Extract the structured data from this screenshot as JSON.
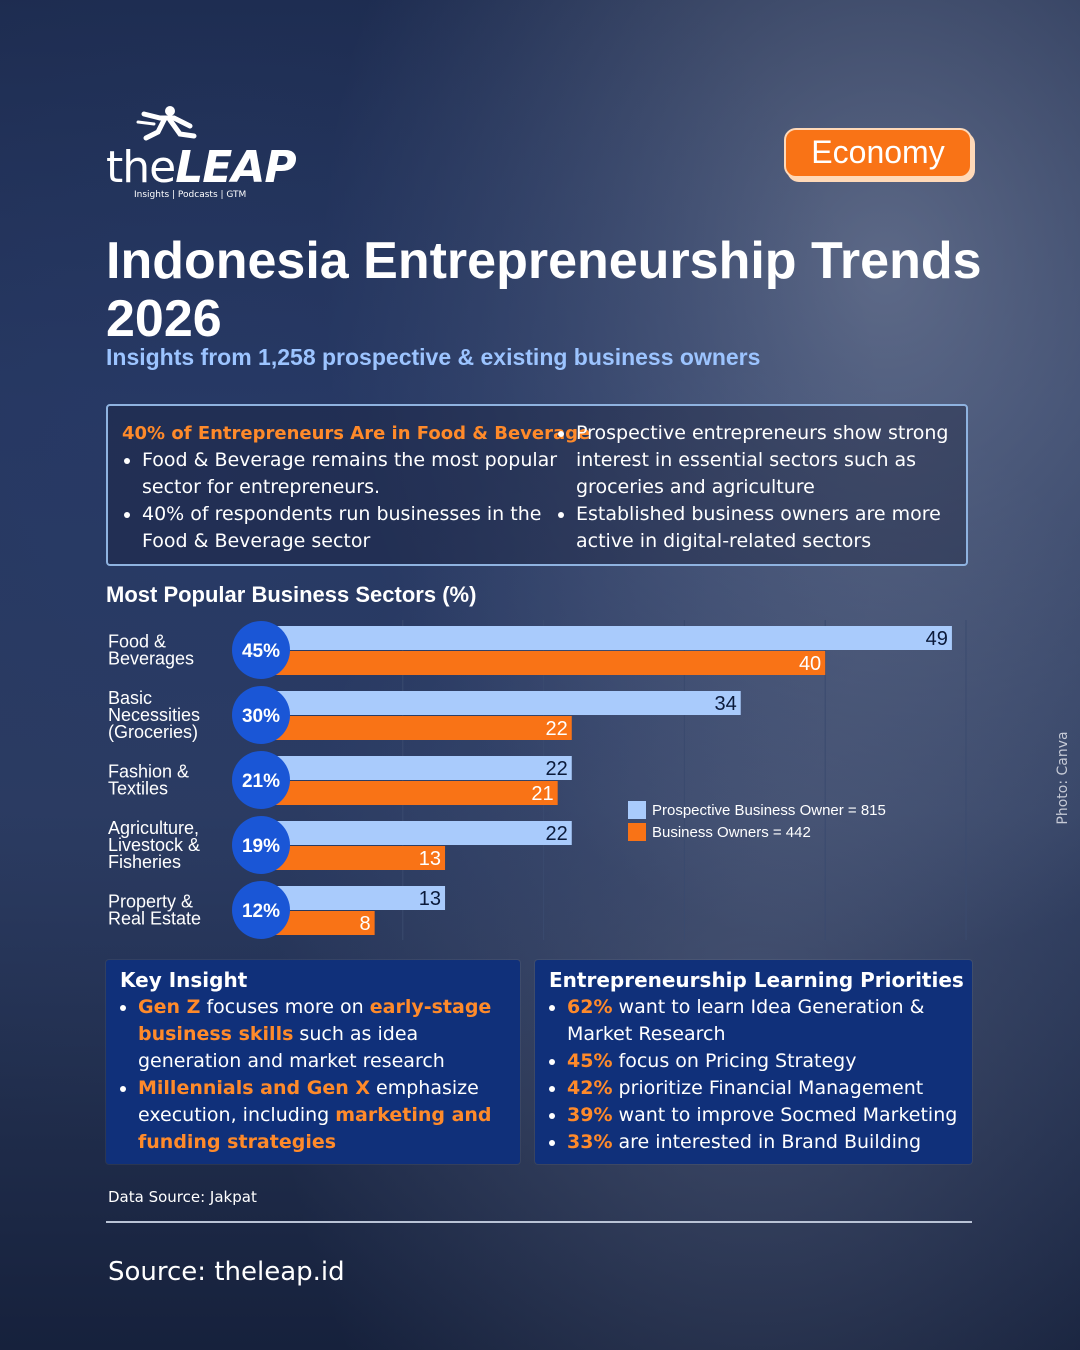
{
  "brand": {
    "wordmark_light": "the",
    "wordmark_bold": "LEAP",
    "tagline": "Insights | Podcasts | GTM"
  },
  "category_badge": "Economy",
  "title": "Indonesia Entrepreneurship Trends 2026",
  "subtitle": "Insights from 1,258 prospective & existing business owners",
  "findings": {
    "heading": "40% of Entrepreneurs Are in Food & Beverage",
    "left": [
      "Food & Beverage remains the most popular sector for entrepreneurs.",
      "40% of respondents run businesses in the Food & Beverage sector"
    ],
    "right": [
      "Prospective entrepreneurs show strong interest in essential sectors such as groceries and agriculture",
      "Established business owners are more active in digital-related sectors"
    ]
  },
  "chart_heading": "Most Popular Business Sectors (%)",
  "colors": {
    "prospective": "#a9cbfc",
    "owners": "#f97316",
    "circle": "#1a56d6",
    "accent": "#ff8a2a",
    "panel": "#10307a"
  },
  "chart_data": {
    "type": "bar",
    "orientation": "horizontal",
    "title": "Most Popular Business Sectors (%)",
    "categories": [
      [
        "Food &",
        "Beverages"
      ],
      [
        "Basic",
        "Necessities",
        "(Groceries)"
      ],
      [
        "Fashion &",
        "Textiles"
      ],
      [
        "Agriculture,",
        "Livestock &",
        "Fisheries"
      ],
      [
        "Property &",
        "Real Estate"
      ]
    ],
    "overall_labels": [
      "45%",
      "30%",
      "21%",
      "19%",
      "12%"
    ],
    "series": [
      {
        "name": "Prospective Business Owner = 815",
        "color": "#a9cbfc",
        "values": [
          49,
          34,
          22,
          22,
          13
        ]
      },
      {
        "name": "Business Owners = 442",
        "color": "#f97316",
        "values": [
          40,
          22,
          21,
          13,
          8
        ]
      }
    ],
    "xlim": [
      0,
      50
    ],
    "grid": true,
    "legend_position": "right"
  },
  "key_insight": {
    "heading": "Key Insight",
    "items": [
      [
        {
          "t": "Gen Z",
          "hl": true
        },
        {
          "t": " focuses more on ",
          "hl": false
        },
        {
          "t": "early-stage business skills",
          "hl": true
        },
        {
          "t": " such as idea generation and market research",
          "hl": false
        }
      ],
      [
        {
          "t": "Millennials and Gen X",
          "hl": true
        },
        {
          "t": " emphasize execution, including ",
          "hl": false
        },
        {
          "t": "marketing and funding strategies",
          "hl": true
        }
      ]
    ]
  },
  "learning": {
    "heading": "Entrepreneurship Learning Priorities",
    "items": [
      {
        "pct": "62%",
        "text": " want to learn Idea Generation & Market Research"
      },
      {
        "pct": "45%",
        "text": " focus on Pricing Strategy"
      },
      {
        "pct": "42%",
        "text": " prioritize Financial Management"
      },
      {
        "pct": "39%",
        "text": " want to improve Socmed Marketing"
      },
      {
        "pct": "33%",
        "text": " are interested in Brand Building"
      }
    ]
  },
  "data_source": "Data Source: Jakpat",
  "footer_source": "Source: theleap.id",
  "photo_credit": "Photo: Canva"
}
